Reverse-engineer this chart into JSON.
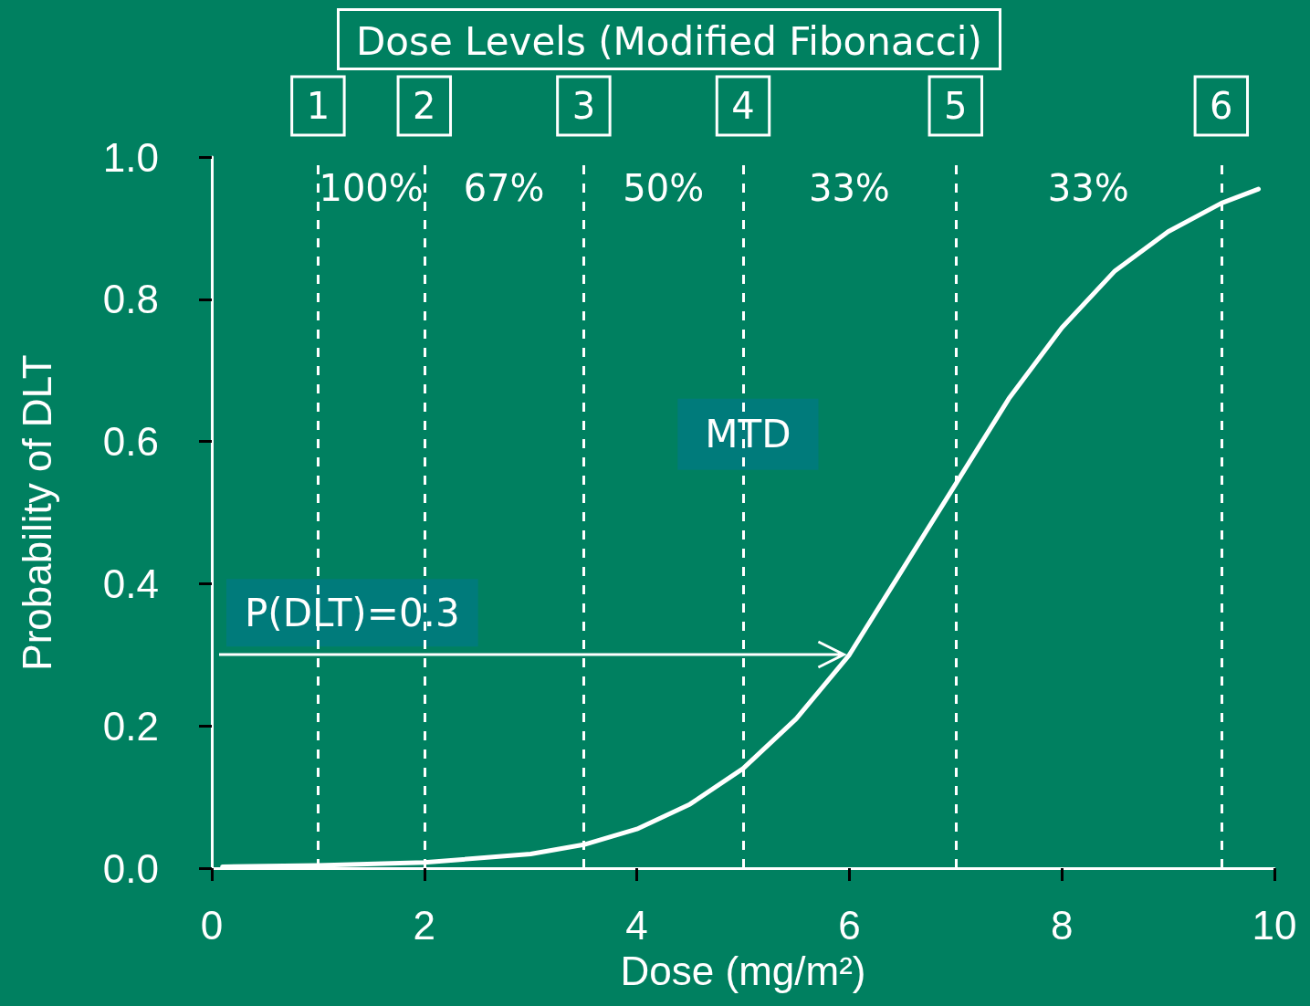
{
  "chart_data": {
    "type": "line",
    "title": "Dose Levels (Modified Fibonacci)",
    "xlabel": "Dose (mg/m²)",
    "ylabel": "Probability of DLT",
    "x": [
      0.1,
      1,
      2,
      3,
      3.5,
      4,
      4.5,
      5,
      5.5,
      6,
      6.5,
      7,
      7.5,
      8,
      8.5,
      9,
      9.5,
      9.85
    ],
    "series": [
      {
        "color": "#ffffff",
        "values": [
          0.002,
          0.004,
          0.008,
          0.02,
          0.033,
          0.055,
          0.09,
          0.14,
          0.21,
          0.3,
          0.42,
          0.54,
          0.66,
          0.76,
          0.84,
          0.895,
          0.935,
          0.955
        ]
      }
    ],
    "xlim": [
      0,
      10
    ],
    "xticks": [
      0,
      2,
      4,
      6,
      8,
      10
    ],
    "ylim": [
      0,
      1.0
    ],
    "yticks": [
      {
        "value": 0,
        "label": "0.0"
      },
      {
        "value": 0.2,
        "label": "0.2"
      },
      {
        "value": 0.4,
        "label": "0.4"
      },
      {
        "value": 0.6,
        "label": "0.6"
      },
      {
        "value": 0.8,
        "label": "0.8"
      },
      {
        "value": 1.0,
        "label": "1.0"
      }
    ],
    "ref_lines": [
      {
        "axis": "x",
        "value": 1,
        "line_style": "dashed"
      },
      {
        "axis": "x",
        "value": 2,
        "line_style": "dashed"
      },
      {
        "axis": "x",
        "value": 3.5,
        "line_style": "dashed"
      },
      {
        "axis": "x",
        "value": 5,
        "line_style": "dashed"
      },
      {
        "axis": "x",
        "value": 7,
        "line_style": "dashed"
      },
      {
        "axis": "x",
        "value": 9.5,
        "line_style": "dashed"
      },
      {
        "axis": "y",
        "value": 0.3,
        "line_style": "solid"
      }
    ],
    "annotations": [
      "1",
      "2",
      "3",
      "4",
      "5",
      "6",
      "100%",
      "67%",
      "50%",
      "33%",
      "33%",
      "MTD",
      "P(DLT)=0.3"
    ],
    "grid": false,
    "marker": "none",
    "line_style": "solid"
  }
}
